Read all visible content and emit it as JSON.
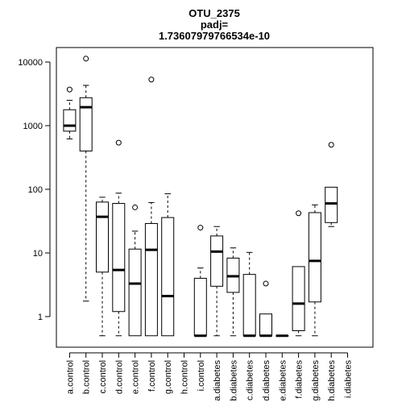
{
  "chart_data": {
    "type": "boxplot",
    "title_lines": [
      "OTU_2375",
      "padj=",
      "1.73607979766534e-10"
    ],
    "xlabel": "",
    "ylabel": "",
    "y_scale": "log",
    "ylim": [
      0.5,
      10000
    ],
    "y_ticks": [
      1,
      10,
      100,
      1000,
      10000
    ],
    "y_tick_labels": [
      "1",
      "10",
      "100",
      "1000",
      "10000"
    ],
    "grid": false,
    "categories": [
      "a.control",
      "b.control",
      "c.control",
      "d.control",
      "e.control",
      "f.control",
      "g.control",
      "h.control",
      "i.control",
      "a.diabetes",
      "b.diabetes",
      "c.diabetes",
      "d.diabetes",
      "e.diabetes",
      "f.diabetes",
      "g.diabetes",
      "h.diabetes",
      "i.diabetes"
    ],
    "boxes": [
      {
        "category": "a.control",
        "whisker_low": 620,
        "q1": 820,
        "median": 1000,
        "q3": 1780,
        "whisker_high": 2500,
        "outliers": [
          3700
        ]
      },
      {
        "category": "b.control",
        "whisker_low": 1.75,
        "q1": 400,
        "median": 1950,
        "q3": 2750,
        "whisker_high": 4300,
        "outliers": [
          11300
        ]
      },
      {
        "category": "c.control",
        "whisker_low": 0.5,
        "q1": 5.0,
        "median": 37,
        "q3": 63,
        "whisker_high": 75,
        "outliers": []
      },
      {
        "category": "d.control",
        "whisker_low": 0.5,
        "q1": 1.2,
        "median": 5.4,
        "q3": 60,
        "whisker_high": 87,
        "outliers": [
          540
        ]
      },
      {
        "category": "e.control",
        "whisker_low": 0.5,
        "q1": 0.5,
        "median": 3.3,
        "q3": 11.5,
        "whisker_high": 22,
        "outliers": [
          52
        ]
      },
      {
        "category": "f.control",
        "whisker_low": 0.5,
        "q1": 0.5,
        "median": 11.2,
        "q3": 29,
        "whisker_high": 62,
        "outliers": [
          5300
        ]
      },
      {
        "category": "g.control",
        "whisker_low": 0.5,
        "q1": 0.5,
        "median": 2.1,
        "q3": 36,
        "whisker_high": 85,
        "outliers": []
      },
      {
        "category": "h.control",
        "whisker_low": null,
        "q1": null,
        "median": null,
        "q3": null,
        "whisker_high": null,
        "outliers": []
      },
      {
        "category": "i.control",
        "whisker_low": 0.5,
        "q1": 0.5,
        "median": 0.5,
        "q3": 4.0,
        "whisker_high": 5.8,
        "outliers": [
          25
        ]
      },
      {
        "category": "a.diabetes",
        "whisker_low": 0.5,
        "q1": 3.0,
        "median": 10.5,
        "q3": 18.5,
        "whisker_high": 26,
        "outliers": []
      },
      {
        "category": "b.diabetes",
        "whisker_low": 0.5,
        "q1": 2.4,
        "median": 4.3,
        "q3": 8.3,
        "whisker_high": 12,
        "outliers": []
      },
      {
        "category": "c.diabetes",
        "whisker_low": 0.5,
        "q1": 0.5,
        "median": 0.5,
        "q3": 4.6,
        "whisker_high": 10.2,
        "outliers": []
      },
      {
        "category": "d.diabetes",
        "whisker_low": 0.5,
        "q1": 0.5,
        "median": 0.5,
        "q3": 1.1,
        "whisker_high": 1.1,
        "outliers": [
          3.3
        ]
      },
      {
        "category": "e.diabetes",
        "whisker_low": 0.5,
        "q1": 0.5,
        "median": 0.5,
        "q3": 0.5,
        "whisker_high": 0.5,
        "outliers": []
      },
      {
        "category": "f.diabetes",
        "whisker_low": 0.5,
        "q1": 0.6,
        "median": 1.6,
        "q3": 6.1,
        "whisker_high": 6.1,
        "outliers": [
          42
        ]
      },
      {
        "category": "g.diabetes",
        "whisker_low": 0.5,
        "q1": 1.7,
        "median": 7.5,
        "q3": 43,
        "whisker_high": 57,
        "outliers": []
      },
      {
        "category": "h.diabetes",
        "whisker_low": 26,
        "q1": 30,
        "median": 60,
        "q3": 108,
        "whisker_high": 108,
        "outliers": [
          500
        ]
      },
      {
        "category": "i.diabetes",
        "whisker_low": null,
        "q1": null,
        "median": null,
        "q3": null,
        "whisker_high": null,
        "outliers": []
      }
    ],
    "colors": {
      "box_fill": "#ffffff",
      "stroke": "#000000",
      "background": "#ffffff"
    }
  }
}
